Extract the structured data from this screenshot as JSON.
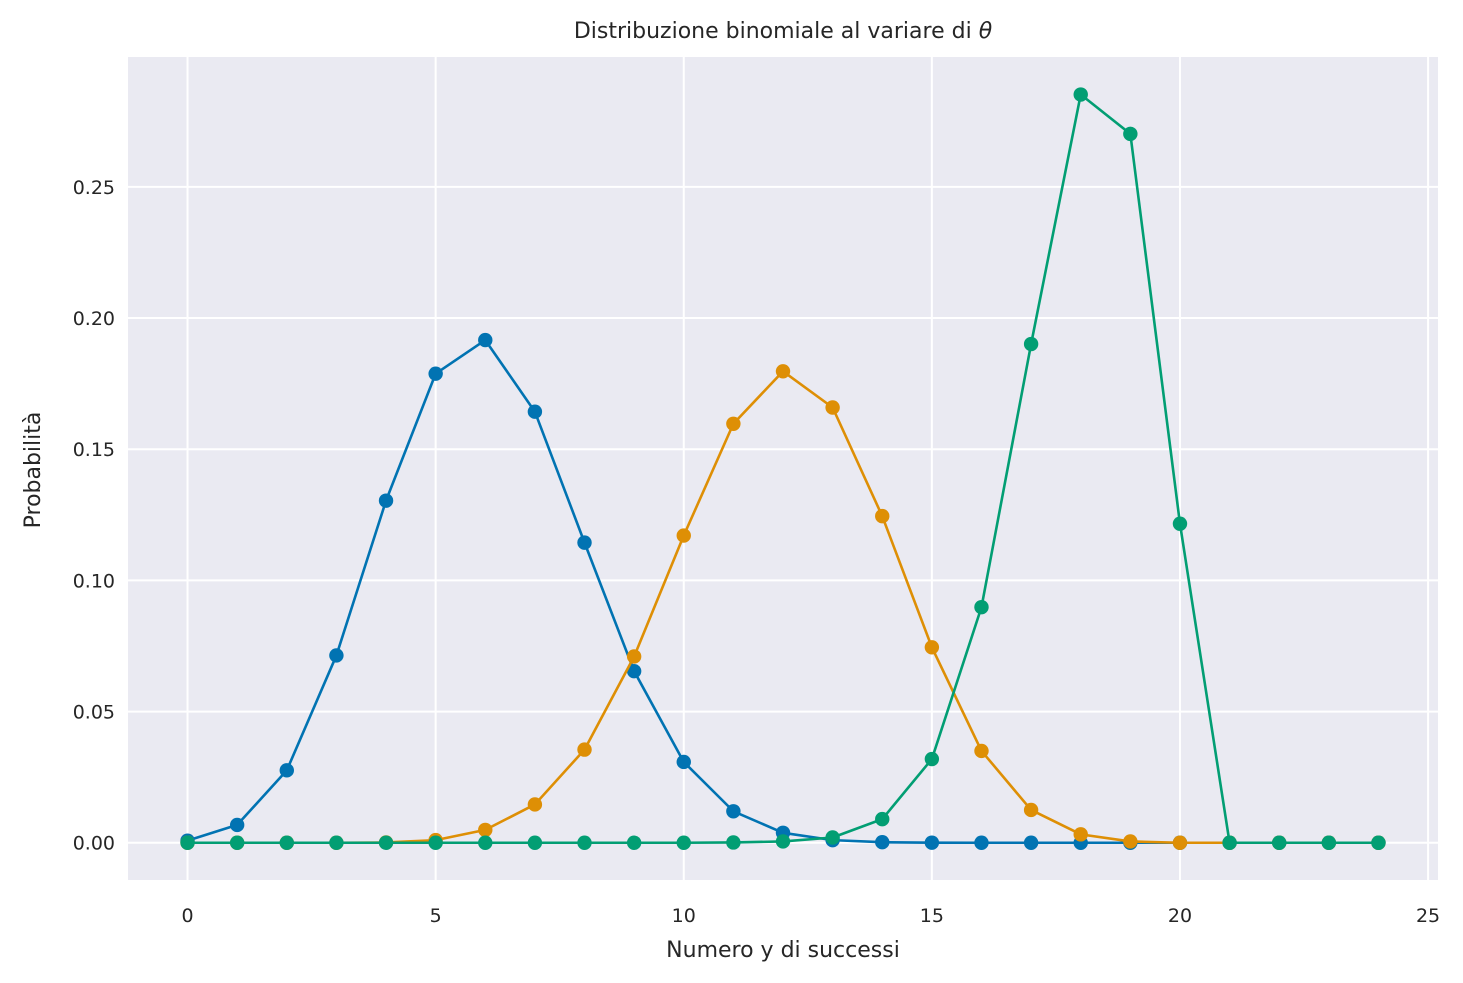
{
  "chart_data": {
    "type": "line",
    "title": "Distribuzione binomiale al variare di ",
    "title_symbol": "θ",
    "xlabel": "Numero y di successi",
    "ylabel": "Probabilità",
    "xlim": [
      -1.2,
      25.2
    ],
    "ylim": [
      -0.0142,
      0.2995
    ],
    "xticks": [
      0,
      5,
      10,
      15,
      20,
      25
    ],
    "xtick_labels": [
      "0",
      "5",
      "10",
      "15",
      "20",
      "25"
    ],
    "yticks": [
      0,
      0.05,
      0.1,
      0.15,
      0.2,
      0.25
    ],
    "ytick_labels": [
      "0.00",
      "0.05",
      "0.10",
      "0.15",
      "0.20",
      "0.25"
    ],
    "grid": true,
    "background": "#eaeaf2",
    "x": [
      0,
      1,
      2,
      3,
      4,
      5,
      6,
      7,
      8,
      9,
      10,
      11,
      12,
      13,
      14,
      15,
      16,
      17,
      18,
      19,
      20,
      21,
      22,
      23,
      24
    ],
    "series": [
      {
        "color": "#0173b2",
        "values": [
          0.0008,
          0.0068,
          0.0276,
          0.0714,
          0.1304,
          0.1788,
          0.1916,
          0.1643,
          0.1144,
          0.0654,
          0.0308,
          0.012,
          0.0038,
          0.001,
          0.0002,
          4e-05,
          0.0,
          0.0,
          0.0,
          0.0,
          0.0,
          0.0,
          0.0,
          0.0,
          0.0
        ]
      },
      {
        "color": "#de8f05",
        "values": [
          0.0,
          0.0,
          0.0,
          0.0,
          0.0001,
          0.001,
          0.0049,
          0.0146,
          0.0355,
          0.071,
          0.1171,
          0.1597,
          0.1797,
          0.1659,
          0.1245,
          0.0745,
          0.035,
          0.0125,
          0.0032,
          0.0005,
          0.0,
          0.0,
          0.0,
          0.0,
          0.0
        ]
      },
      {
        "color": "#029e73",
        "values": [
          0.0,
          0.0,
          0.0,
          0.0,
          0.0,
          0.0,
          0.0,
          0.0,
          0.0,
          0.0,
          0.0,
          0.0001,
          0.0005,
          0.002,
          0.009,
          0.0319,
          0.0898,
          0.1901,
          0.2852,
          0.2702,
          0.1216,
          0.0,
          0.0,
          0.0,
          0.0
        ]
      }
    ]
  }
}
